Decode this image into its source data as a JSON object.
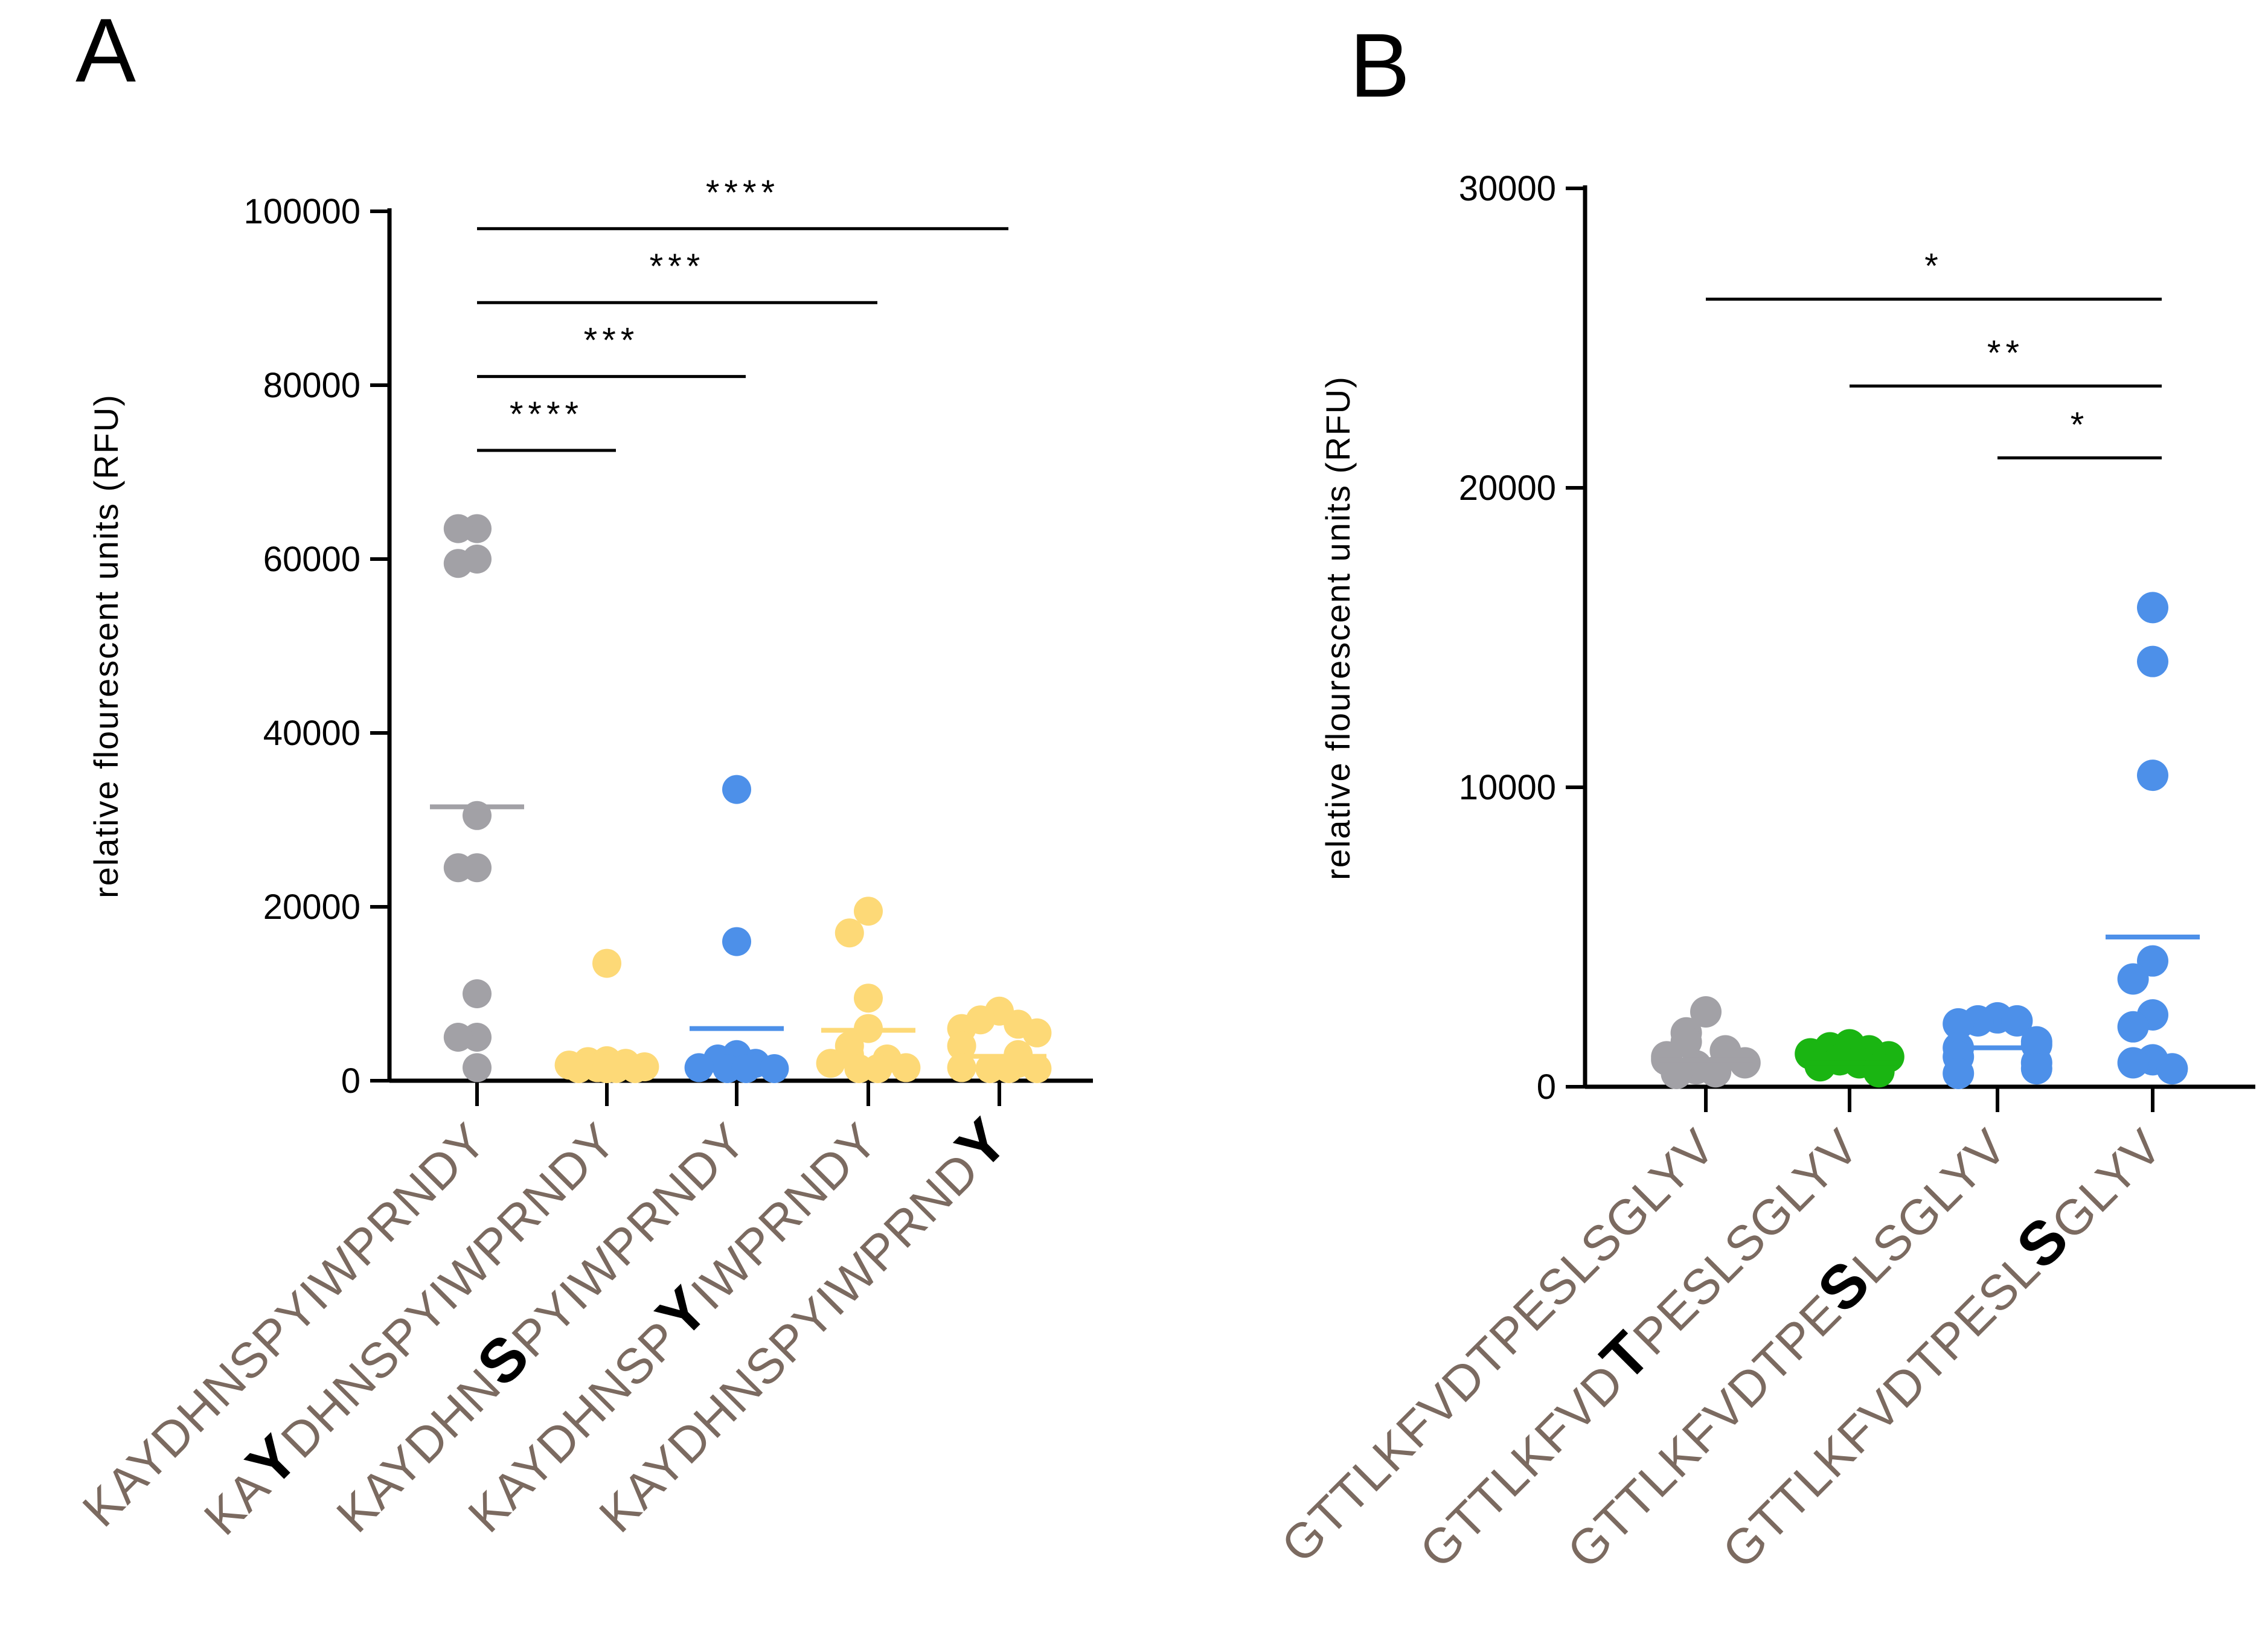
{
  "colors": {
    "gray": "#a2a1a6",
    "yellow": "#fdd977",
    "blue": "#4d90e9",
    "green": "#1ab512",
    "label": "#7b6a60",
    "highlight": "#000000"
  },
  "chart_data": [
    {
      "panel": "A",
      "type": "scatter",
      "title": "",
      "ylabel": "relative flourescent units (RFU)",
      "ylim": [
        0,
        100000
      ],
      "yticks": [
        0,
        20000,
        40000,
        60000,
        80000,
        100000
      ],
      "ytick_labels": [
        "0",
        "20000",
        "40000",
        "60000",
        "80000",
        "100000"
      ],
      "categories": [
        {
          "pre": "KAYDHNSPYIWPRNDY",
          "hl": "",
          "post": ""
        },
        {
          "pre": "KA",
          "hl": "Y",
          "post": "DHNSPYIWPRNDY"
        },
        {
          "pre": "KAYDHN",
          "hl": "S",
          "post": "PYIWPRNDY"
        },
        {
          "pre": "KAYDHNSP",
          "hl": "Y",
          "post": "IWPRNDY"
        },
        {
          "pre": "KAYDHNSPYIWPRND",
          "hl": "Y",
          "post": ""
        }
      ],
      "series": [
        {
          "name": "KAYDHNSPYIWPRNDY",
          "color": "gray",
          "mean": 31500,
          "points": [
            63500,
            63500,
            60000,
            59500,
            30500,
            24500,
            24500,
            10000,
            5000,
            5000,
            1500
          ]
        },
        {
          "name": "KAYDHNSPYIWPRNDY (Y)",
          "color": "yellow",
          "mean": 2500,
          "points": [
            13500,
            2300,
            2200,
            2000,
            1800,
            1600,
            1500,
            1400,
            1200,
            1000,
            800
          ]
        },
        {
          "name": "KAYDHNSPYIWPRNDY (S)",
          "color": "blue",
          "mean": 6000,
          "points": [
            33500,
            16000,
            3000,
            2500,
            2000,
            1500,
            1200,
            1000,
            900
          ]
        },
        {
          "name": "KAYDHNSPYIWPRNDY (Y2)",
          "color": "yellow",
          "mean": 5800,
          "points": [
            19500,
            17000,
            9500,
            6000,
            4000,
            3000,
            2500,
            2000,
            1500,
            1000,
            800
          ]
        },
        {
          "name": "KAYDHNSPYIWPRNDY (Y3)",
          "color": "yellow",
          "mean": 2800,
          "points": [
            8000,
            7000,
            6500,
            6000,
            5500,
            4000,
            3000,
            2000,
            1500,
            1000,
            800,
            500
          ]
        }
      ],
      "significance": [
        {
          "from": 0,
          "to": 4,
          "stars": "****",
          "y": 98000
        },
        {
          "from": 0,
          "to": 3,
          "stars": "***",
          "y": 89500
        },
        {
          "from": 0,
          "to": 2,
          "stars": "***",
          "y": 81000
        },
        {
          "from": 0,
          "to": 1,
          "stars": "****",
          "y": 72500
        }
      ]
    },
    {
      "panel": "B",
      "type": "scatter",
      "title": "",
      "ylabel": "relative flourescent units (RFU)",
      "ylim": [
        0,
        30000
      ],
      "yticks": [
        0,
        10000,
        20000,
        30000
      ],
      "ytick_labels": [
        "0",
        "10000",
        "20000",
        "30000"
      ],
      "categories": [
        {
          "pre": "GTTLKFVDTPESLSGLYV",
          "hl": "",
          "post": ""
        },
        {
          "pre": "GTTLKFVD",
          "hl": "T",
          "post": "PESLSGLYV"
        },
        {
          "pre": "GTTLKFVDTPE",
          "hl": "S",
          "post": "LSGLYV"
        },
        {
          "pre": "GTTLKFVDTPESL",
          "hl": "S",
          "post": "GLYV"
        }
      ],
      "series": [
        {
          "name": "GTTLKFVDTPESLSGLYV",
          "color": "gray",
          "mean": 900,
          "points": [
            2500,
            1800,
            1500,
            1200,
            1000,
            900,
            800,
            700,
            600,
            500,
            400
          ]
        },
        {
          "name": "GTTLKFVDTPESLSGLYV (T)",
          "color": "green",
          "mean": 800,
          "points": [
            1400,
            1300,
            1200,
            1100,
            1000,
            900,
            800,
            700,
            600,
            500
          ]
        },
        {
          "name": "GTTLKFVDTPESLSGLYV (S1)",
          "color": "blue",
          "mean": 1300,
          "points": [
            2300,
            2200,
            2200,
            2100,
            1500,
            1400,
            1300,
            1000,
            800,
            600,
            400
          ]
        },
        {
          "name": "GTTLKFVDTPESLSGLYV (S2)",
          "color": "blue",
          "mean": 5000,
          "points": [
            16000,
            14200,
            10400,
            4200,
            3600,
            2400,
            2000,
            900,
            800,
            600
          ]
        }
      ],
      "significance": [
        {
          "from": 0,
          "to": 3,
          "stars": "*",
          "y": 26300
        },
        {
          "from": 1,
          "to": 3,
          "stars": "**",
          "y": 23400
        },
        {
          "from": 2,
          "to": 3,
          "stars": "*",
          "y": 21000
        }
      ]
    }
  ],
  "panels": {
    "a_letter": "A",
    "b_letter": "B"
  }
}
